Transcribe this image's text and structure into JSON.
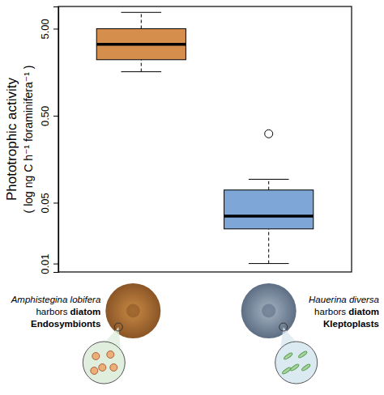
{
  "chart_data": {
    "type": "box",
    "y_label": "Phototrophic activity",
    "y_label_units": "( log ng C h⁻¹ foraminifera⁻¹ )",
    "categories": [
      "Amphistegina lobifera",
      "Hauerina diversa"
    ],
    "annotations": [
      [
        "harbors diatom",
        "Endosymbionts"
      ],
      [
        "harbors diatom",
        "Kleptoplasts"
      ]
    ],
    "boxes": [
      {
        "whisker_low": 1.6,
        "q1": 2.2,
        "median": 3.3,
        "q3": 5.0,
        "whisker_high": 7.7,
        "outliers": [],
        "color": "#d58e4b"
      },
      {
        "whisker_low": 0.01,
        "q1": 0.025,
        "median": 0.035,
        "q3": 0.07,
        "whisker_high": 0.093,
        "outliers": [
          0.31
        ],
        "color": "#7ea6d6"
      }
    ],
    "log": "y",
    "ylim": [
      0.008,
      9
    ],
    "yticks": [
      0.01,
      0.05,
      {
        "value": 0.5,
        "label": "0.50"
      },
      {
        "value": 5,
        "label": "5.00"
      }
    ]
  }
}
